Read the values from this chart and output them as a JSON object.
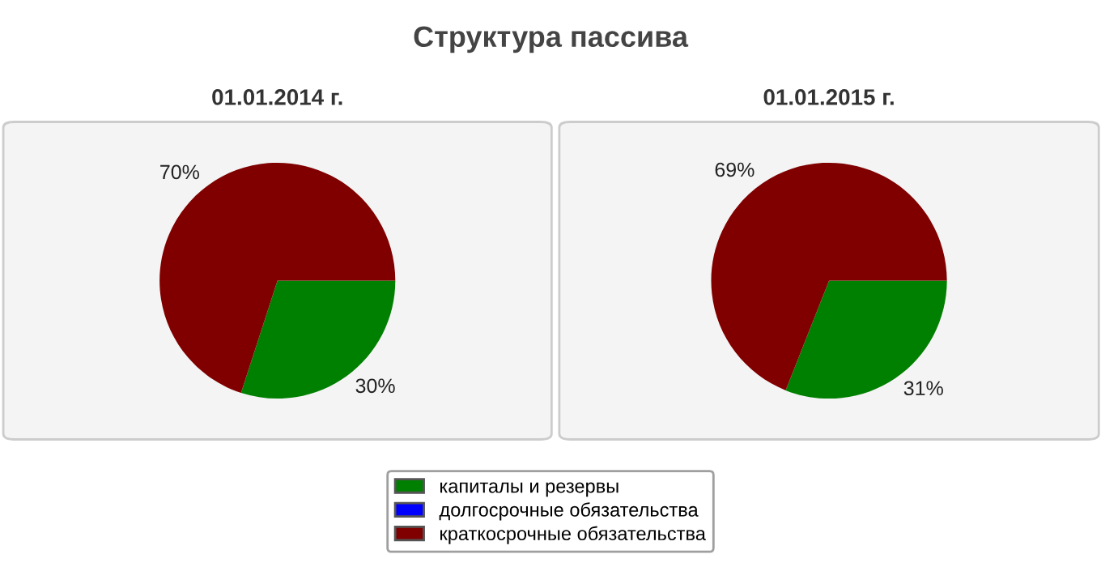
{
  "chart_data": [
    {
      "type": "pie",
      "title": "Структура пассива",
      "subtitle": "01.01.2014 г.",
      "categories": [
        "капиталы и резервы",
        "долгосрочные обязательства",
        "краткосрочные обязательства"
      ],
      "values": [
        30,
        0,
        70
      ],
      "value_labels": [
        "30%",
        null,
        "70%"
      ],
      "colors": [
        "#008000",
        "#0000ff",
        "#800000"
      ],
      "legend": "bottom"
    },
    {
      "type": "pie",
      "subtitle": "01.01.2015 г.",
      "categories": [
        null,
        null,
        null
      ],
      "values": [
        31,
        0,
        69
      ],
      "value_labels": [
        "31%",
        null,
        "69%"
      ],
      "colors": [
        "#008000",
        "#0000ff",
        "#800000"
      ]
    }
  ]
}
